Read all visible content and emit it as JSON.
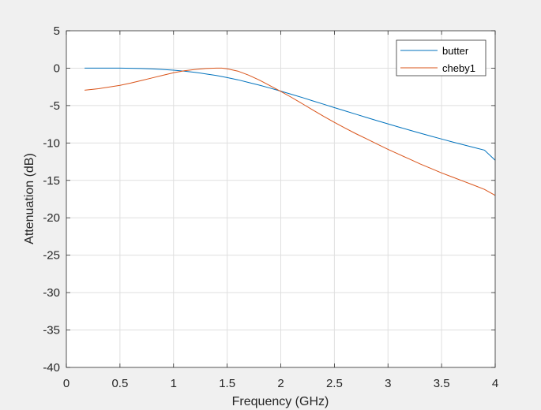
{
  "chart_data": {
    "type": "line",
    "title": "",
    "xlabel": "Frequency (GHz)",
    "ylabel": "Attenuation (dB)",
    "xlim": [
      0,
      4
    ],
    "ylim": [
      -40,
      5
    ],
    "xticks": [
      0,
      0.5,
      1,
      1.5,
      2,
      2.5,
      3,
      3.5,
      4
    ],
    "xtick_labels": [
      "0",
      "0.5",
      "1",
      "1.5",
      "2",
      "2.5",
      "3",
      "3.5",
      "4"
    ],
    "yticks": [
      -40,
      -35,
      -30,
      -25,
      -20,
      -15,
      -10,
      -5,
      0,
      5
    ],
    "ytick_labels": [
      "-40",
      "-35",
      "-30",
      "-25",
      "-20",
      "-15",
      "-10",
      "-5",
      "0",
      "5"
    ],
    "grid": true,
    "legend_position": "top-right",
    "series": [
      {
        "name": "butter",
        "color": "#0072bd",
        "points": [
          [
            0.17,
            0.0
          ],
          [
            0.3,
            0.0
          ],
          [
            0.5,
            0.0
          ],
          [
            0.6,
            -0.02
          ],
          [
            0.7,
            -0.05
          ],
          [
            0.8,
            -0.1
          ],
          [
            0.9,
            -0.17
          ],
          [
            1.0,
            -0.27
          ],
          [
            1.1,
            -0.41
          ],
          [
            1.2,
            -0.56
          ],
          [
            1.3,
            -0.76
          ],
          [
            1.4,
            -0.99
          ],
          [
            1.5,
            -1.26
          ],
          [
            1.6,
            -1.56
          ],
          [
            1.7,
            -1.91
          ],
          [
            1.8,
            -2.27
          ],
          [
            1.9,
            -2.66
          ],
          [
            2.0,
            -3.07
          ],
          [
            2.1,
            -3.49
          ],
          [
            2.2,
            -3.93
          ],
          [
            2.3,
            -4.38
          ],
          [
            2.4,
            -4.82
          ],
          [
            2.5,
            -5.27
          ],
          [
            2.6,
            -5.71
          ],
          [
            2.7,
            -6.15
          ],
          [
            2.8,
            -6.59
          ],
          [
            2.9,
            -7.02
          ],
          [
            3.0,
            -7.45
          ],
          [
            3.1,
            -7.87
          ],
          [
            3.2,
            -8.28
          ],
          [
            3.3,
            -8.69
          ],
          [
            3.4,
            -9.08
          ],
          [
            3.5,
            -9.47
          ],
          [
            3.6,
            -9.86
          ],
          [
            3.7,
            -10.23
          ],
          [
            3.8,
            -10.6
          ],
          [
            3.9,
            -10.96
          ],
          [
            4.0,
            -12.3
          ]
        ]
      },
      {
        "name": "cheby1",
        "color": "#d95319",
        "points": [
          [
            0.17,
            -2.95
          ],
          [
            0.3,
            -2.75
          ],
          [
            0.5,
            -2.3
          ],
          [
            0.6,
            -2.0
          ],
          [
            0.7,
            -1.65
          ],
          [
            0.8,
            -1.3
          ],
          [
            0.9,
            -0.95
          ],
          [
            1.0,
            -0.62
          ],
          [
            1.1,
            -0.35
          ],
          [
            1.2,
            -0.17
          ],
          [
            1.3,
            -0.05
          ],
          [
            1.4,
            0.0
          ],
          [
            1.45,
            0.0
          ],
          [
            1.5,
            -0.08
          ],
          [
            1.6,
            -0.4
          ],
          [
            1.7,
            -0.93
          ],
          [
            1.8,
            -1.6
          ],
          [
            1.9,
            -2.35
          ],
          [
            2.0,
            -3.1
          ],
          [
            2.1,
            -3.9
          ],
          [
            2.2,
            -4.75
          ],
          [
            2.3,
            -5.6
          ],
          [
            2.4,
            -6.45
          ],
          [
            2.5,
            -7.25
          ],
          [
            2.6,
            -8.0
          ],
          [
            2.7,
            -8.75
          ],
          [
            2.8,
            -9.45
          ],
          [
            2.9,
            -10.15
          ],
          [
            3.0,
            -10.85
          ],
          [
            3.1,
            -11.5
          ],
          [
            3.2,
            -12.15
          ],
          [
            3.3,
            -12.8
          ],
          [
            3.4,
            -13.4
          ],
          [
            3.5,
            -14.0
          ],
          [
            3.6,
            -14.55
          ],
          [
            3.7,
            -15.1
          ],
          [
            3.8,
            -15.65
          ],
          [
            3.9,
            -16.2
          ],
          [
            4.0,
            -17.0
          ]
        ]
      }
    ]
  }
}
